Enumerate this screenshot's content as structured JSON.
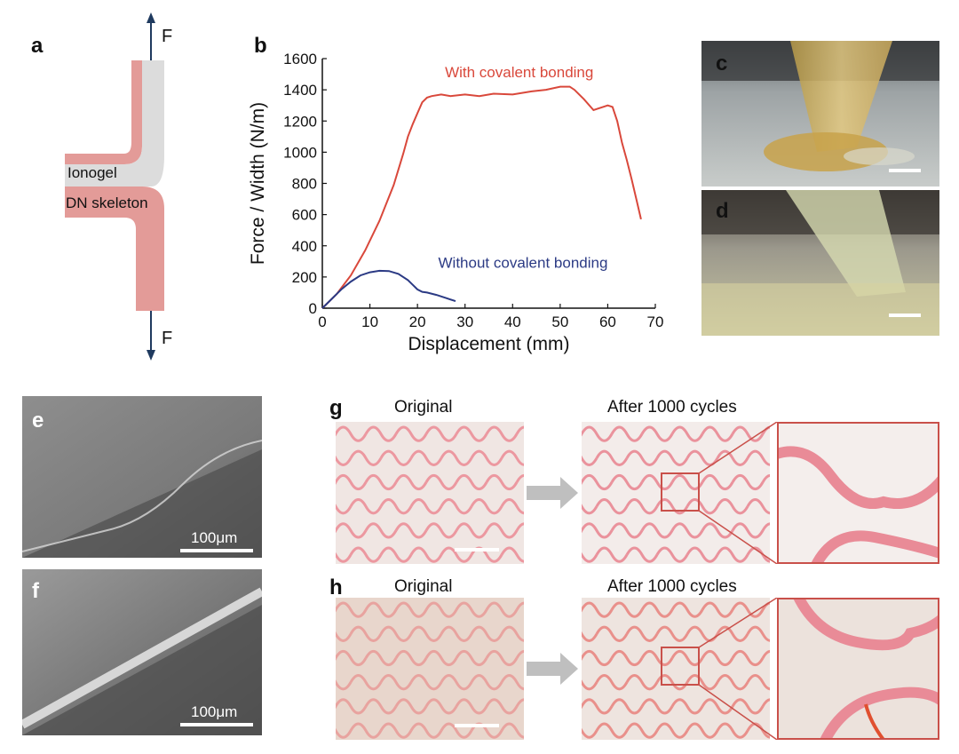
{
  "panels": {
    "a": {
      "letter": "a",
      "force_top": "F",
      "force_bottom": "F",
      "ionogel_label": "Ionogel",
      "skeleton_label": "DN skeleton",
      "colors": {
        "skeleton": "#e39b98",
        "ionogel": "#dcdcdc",
        "arrow": "#1f3a5f"
      }
    },
    "b": {
      "letter": "b"
    },
    "c": {
      "letter": "c"
    },
    "d": {
      "letter": "d"
    },
    "e": {
      "letter": "e",
      "scale_label": "100μm"
    },
    "f": {
      "letter": "f",
      "scale_label": "100μm"
    },
    "g": {
      "letter": "g",
      "original_label": "Original",
      "after_label": "After 1000 cycles"
    },
    "h": {
      "letter": "h",
      "original_label": "Original",
      "after_label": "After 1000 cycles"
    }
  },
  "chart_data": {
    "type": "line",
    "xlabel": "Displacement (mm)",
    "ylabel": "Force / Width (N/m)",
    "xlim": [
      0,
      70
    ],
    "ylim": [
      0,
      1600
    ],
    "xticks": [
      0,
      10,
      20,
      30,
      40,
      50,
      60,
      70
    ],
    "yticks": [
      0,
      200,
      400,
      600,
      800,
      1000,
      1200,
      1400,
      1600
    ],
    "grid": false,
    "series": [
      {
        "name": "With covalent bonding",
        "color": "#d9483b",
        "x": [
          0,
          3,
          6,
          9,
          12,
          15,
          17,
          18,
          19,
          20,
          21,
          22,
          23,
          25,
          27,
          30,
          33,
          36,
          40,
          44,
          47,
          50,
          52,
          53,
          55,
          57,
          58,
          59,
          60,
          61,
          62,
          63,
          64,
          65,
          66,
          67
        ],
        "y": [
          0,
          90,
          210,
          370,
          560,
          790,
          990,
          1100,
          1180,
          1250,
          1320,
          1350,
          1360,
          1370,
          1360,
          1370,
          1360,
          1375,
          1370,
          1390,
          1400,
          1420,
          1420,
          1400,
          1340,
          1270,
          1280,
          1290,
          1300,
          1290,
          1200,
          1060,
          950,
          830,
          700,
          570
        ]
      },
      {
        "name": "Without covalent bonding",
        "color": "#2b3a84",
        "x": [
          0,
          2,
          4,
          6,
          8,
          10,
          12,
          14,
          16,
          18,
          19,
          20,
          21,
          22,
          24,
          26,
          28
        ],
        "y": [
          0,
          60,
          120,
          170,
          210,
          230,
          240,
          238,
          220,
          180,
          150,
          120,
          105,
          100,
          85,
          65,
          45
        ]
      }
    ]
  }
}
